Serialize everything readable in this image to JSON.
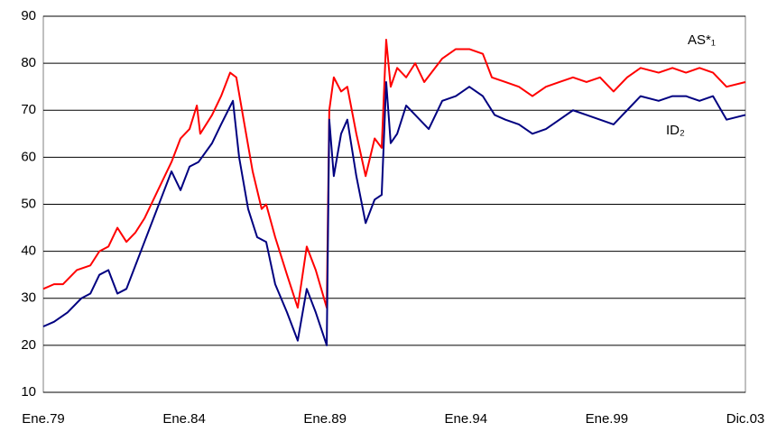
{
  "chart_data": {
    "type": "line",
    "xlim": [
      1979,
      2003.92
    ],
    "xticks": [
      {
        "value": 1979,
        "label": "Ene.79"
      },
      {
        "value": 1984,
        "label": "Ene.84"
      },
      {
        "value": 1989,
        "label": "Ene.89"
      },
      {
        "value": 1994,
        "label": "Ene.94"
      },
      {
        "value": 1999,
        "label": "Ene.99"
      },
      {
        "value": 2003.92,
        "label": "Dic.03"
      }
    ],
    "ylim": [
      10,
      90
    ],
    "yticks": [
      10,
      20,
      30,
      40,
      50,
      60,
      70,
      80,
      90
    ],
    "grid": true,
    "series": [
      {
        "name": "AS*₁",
        "color": "#ff0000",
        "x": [
          1979.0,
          1979.38,
          1979.7,
          1980.19,
          1980.67,
          1980.99,
          1981.31,
          1981.63,
          1981.95,
          1982.27,
          1982.59,
          1983.07,
          1983.55,
          1983.87,
          1984.19,
          1984.45,
          1984.57,
          1984.99,
          1985.31,
          1985.63,
          1985.85,
          1986.11,
          1986.43,
          1986.75,
          1986.91,
          1987.23,
          1987.65,
          1988.03,
          1988.35,
          1988.67,
          1989.06,
          1989.15,
          1989.31,
          1989.57,
          1989.79,
          1990.11,
          1990.44,
          1990.76,
          1991.01,
          1991.17,
          1991.33,
          1991.56,
          1991.88,
          1992.2,
          1992.52,
          1993.16,
          1993.64,
          1994.12,
          1994.6,
          1994.92,
          1995.4,
          1995.88,
          1996.36,
          1996.84,
          1997.32,
          1997.8,
          1998.28,
          1998.76,
          1999.24,
          1999.72,
          2000.2,
          2000.84,
          2001.33,
          2001.81,
          2002.29,
          2002.77,
          2003.25,
          2003.92
        ],
        "values": [
          32,
          33,
          33,
          36,
          37,
          40,
          41,
          45,
          42,
          44,
          47,
          53,
          59,
          64,
          66,
          71,
          65,
          69,
          73,
          78,
          77,
          68,
          57,
          49,
          50,
          43,
          35,
          28,
          41,
          36,
          28,
          70,
          77,
          74,
          75,
          65,
          56,
          64,
          62,
          85,
          75,
          79,
          77,
          80,
          76,
          81,
          83,
          83,
          82,
          77,
          76,
          75,
          73,
          75,
          76,
          77,
          76,
          77,
          74,
          77,
          79,
          78,
          79,
          78,
          79,
          78,
          75,
          76
        ]
      },
      {
        "name": "ID₂",
        "color": "#000080",
        "x": [
          1979.0,
          1979.38,
          1979.86,
          1980.35,
          1980.67,
          1980.99,
          1981.31,
          1981.63,
          1981.95,
          1982.27,
          1982.59,
          1982.91,
          1983.23,
          1983.55,
          1983.87,
          1984.19,
          1984.51,
          1984.99,
          1985.31,
          1985.73,
          1985.95,
          1986.27,
          1986.59,
          1986.91,
          1987.23,
          1987.65,
          1988.03,
          1988.35,
          1988.67,
          1989.06,
          1989.15,
          1989.31,
          1989.57,
          1989.79,
          1990.11,
          1990.44,
          1990.76,
          1991.01,
          1991.17,
          1991.33,
          1991.56,
          1991.88,
          1992.2,
          1992.68,
          1993.16,
          1993.64,
          1994.12,
          1994.6,
          1995.02,
          1995.4,
          1995.88,
          1996.36,
          1996.84,
          1997.32,
          1997.8,
          1998.28,
          1998.76,
          1999.24,
          1999.72,
          2000.2,
          2000.84,
          2001.33,
          2001.81,
          2002.29,
          2002.77,
          2003.25,
          2003.92
        ],
        "values": [
          24,
          25,
          27,
          30,
          31,
          35,
          36,
          31,
          32,
          37,
          42,
          47,
          52,
          57,
          53,
          58,
          59,
          63,
          67,
          72,
          60,
          49,
          43,
          42,
          33,
          27,
          21,
          32,
          27,
          20,
          68,
          56,
          65,
          68,
          56,
          46,
          51,
          52,
          76,
          63,
          65,
          71,
          69,
          66,
          72,
          73,
          75,
          73,
          69,
          68,
          67,
          65,
          66,
          68,
          70,
          69,
          68,
          67,
          70,
          73,
          72,
          73,
          73,
          72,
          73,
          68,
          69
        ]
      }
    ]
  }
}
